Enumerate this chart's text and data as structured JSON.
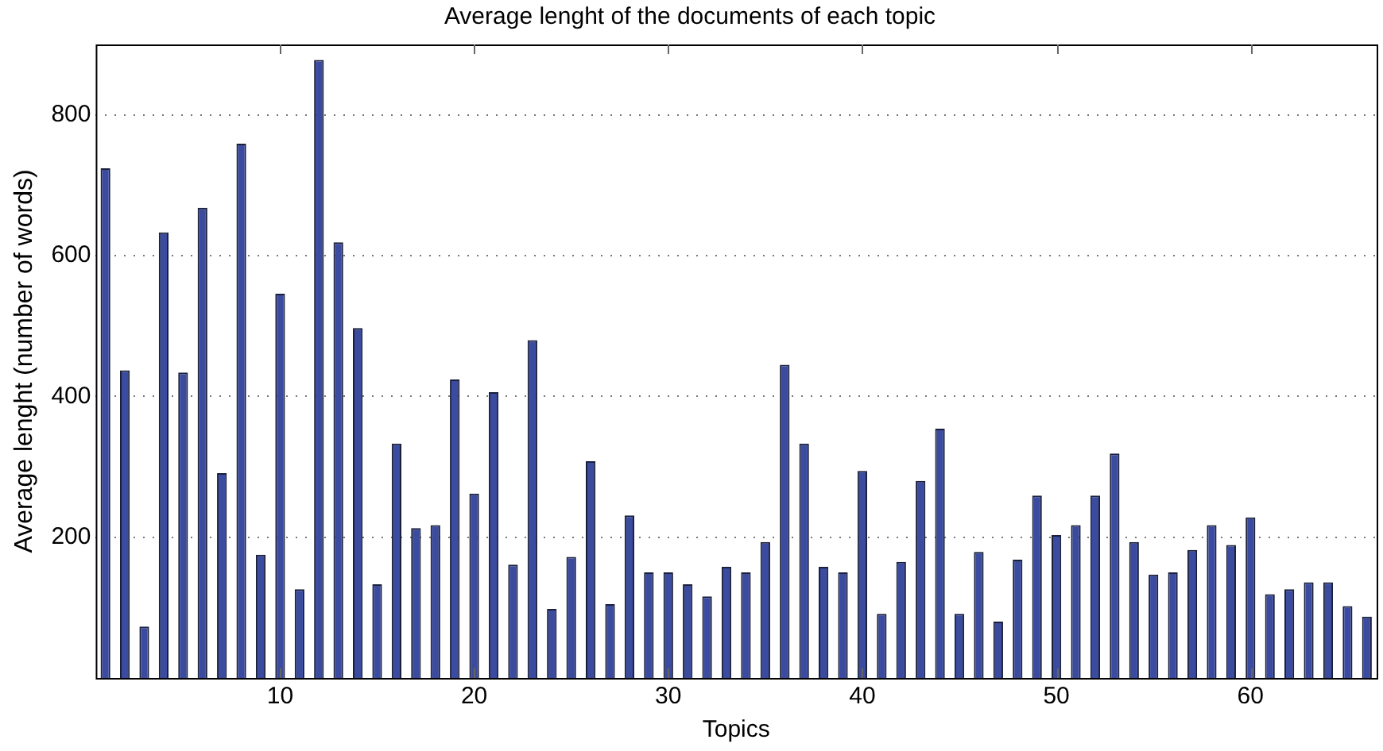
{
  "chart_data": {
    "type": "bar",
    "title": "Average lenght of the documents of each topic",
    "xlabel": "Topics",
    "ylabel": "Average lenght (number of words)",
    "x": [
      1,
      2,
      3,
      4,
      5,
      6,
      7,
      8,
      9,
      10,
      11,
      12,
      13,
      14,
      15,
      16,
      17,
      18,
      19,
      20,
      21,
      22,
      23,
      24,
      25,
      26,
      27,
      28,
      29,
      30,
      31,
      32,
      33,
      34,
      35,
      36,
      37,
      38,
      39,
      40,
      41,
      42,
      43,
      44,
      45,
      46,
      47,
      48,
      49,
      50,
      51,
      52,
      53,
      54,
      55,
      56,
      57,
      58,
      59,
      60,
      61,
      62,
      63,
      64,
      65,
      66
    ],
    "values": [
      724,
      437,
      73,
      633,
      434,
      668,
      291,
      759,
      175,
      546,
      126,
      878,
      619,
      497,
      133,
      333,
      213,
      217,
      424,
      262,
      406,
      161,
      480,
      98,
      172,
      308,
      105,
      231,
      150,
      150,
      133,
      116,
      158,
      150,
      193,
      445,
      333,
      158,
      150,
      294,
      91,
      165,
      280,
      354,
      91,
      179,
      80,
      168,
      259,
      203,
      217,
      259,
      319,
      193,
      147,
      150,
      182,
      217,
      189,
      228,
      119,
      126,
      136,
      136,
      102,
      87
    ],
    "color": "#3a4ba0",
    "xlim": [
      0.5,
      66.5
    ],
    "xticks": [
      10,
      20,
      30,
      40,
      50,
      60
    ],
    "ylim": [
      0,
      900
    ],
    "yticks": [
      200,
      400,
      600,
      800
    ],
    "grid": "y",
    "legend": false
  }
}
